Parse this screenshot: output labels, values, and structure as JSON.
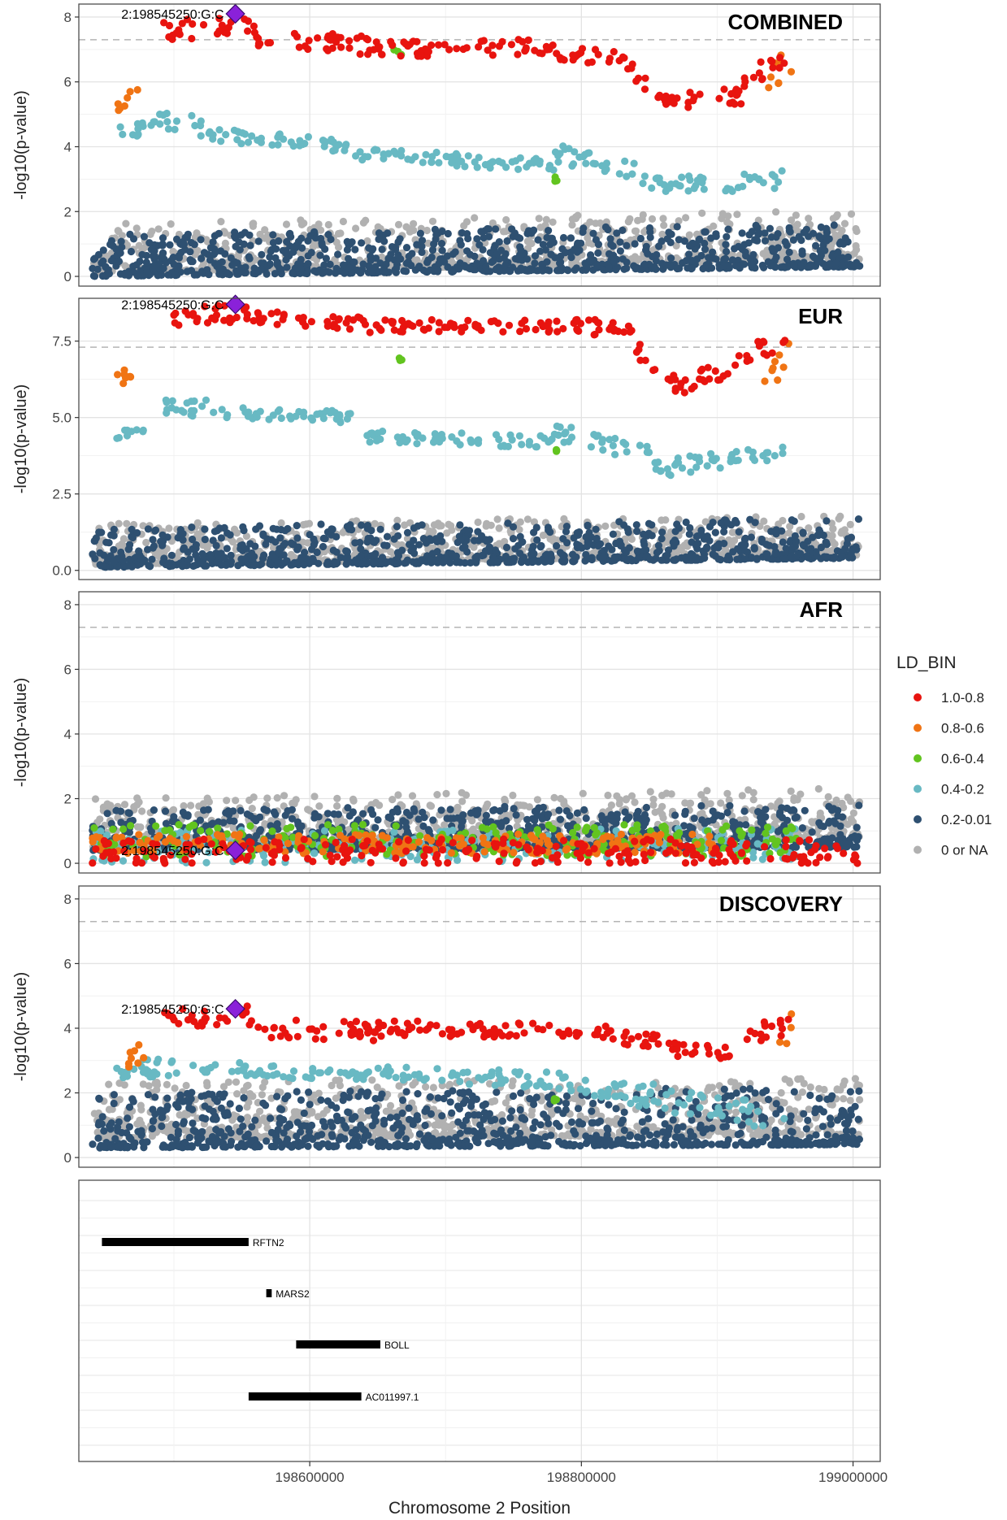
{
  "chart_data": {
    "type": "scatter",
    "xlabel": "Chromosome 2 Position",
    "ylabel": "-log10(p-value)",
    "xlim": [
      198430000,
      199020000
    ],
    "x_ticks": [
      "198600000",
      "198800000",
      "199000000"
    ],
    "x_tick_values": [
      198600000,
      198800000,
      199000000
    ],
    "grid": true,
    "significance_line": 7.3,
    "lead_snp": {
      "label": "2:198545250:G:C",
      "pos": 198545250
    },
    "legend": {
      "title": "LD_BIN",
      "placement": "right",
      "entries": [
        {
          "label": "1.0-0.8",
          "color": "#e8140f"
        },
        {
          "label": "0.8-0.6",
          "color": "#f07414"
        },
        {
          "label": "0.6-0.4",
          "color": "#62c41f"
        },
        {
          "label": "0.4-0.2",
          "color": "#68b9c3"
        },
        {
          "label": "0.2-0.01",
          "color": "#2e5071"
        },
        {
          "label": "0 or NA",
          "color": "#b1b1b1"
        }
      ]
    },
    "panels": [
      {
        "title": "COMBINED",
        "ylim": [
          -0.3,
          8.4
        ],
        "y_ticks": [
          "0",
          "2",
          "4",
          "6",
          "8"
        ],
        "y_tick_values": [
          0,
          2,
          4,
          6,
          8
        ],
        "lead_y": 8.1,
        "series": [
          {
            "bin": "1.0-0.8",
            "segments": [
              [
                198492000,
                7.6,
                198560000,
                7.7,
                0.3
              ],
              [
                198560000,
                7.4,
                198650000,
                7.1,
                0.3
              ],
              [
                198650000,
                7.0,
                198780000,
                7.1,
                0.25
              ],
              [
                198780000,
                6.9,
                198840000,
                6.6,
                0.25
              ],
              [
                198840000,
                6.2,
                198870000,
                5.3,
                0.3
              ],
              [
                198870000,
                5.4,
                198920000,
                5.6,
                0.3
              ],
              [
                198920000,
                6.0,
                198950000,
                6.8,
                0.3
              ]
            ]
          },
          {
            "bin": "0.8-0.6",
            "segments": [
              [
                198458000,
                5.1,
                198475000,
                6.1,
                0.3
              ],
              [
                198935000,
                6.0,
                198955000,
                6.7,
                0.5
              ]
            ]
          },
          {
            "bin": "0.6-0.4",
            "segments": [
              [
                198660000,
                6.9,
                198670000,
                6.9,
                0.1
              ],
              [
                198780000,
                3.0,
                198785000,
                3.0,
                0.1
              ]
            ]
          },
          {
            "bin": "0.4-0.2",
            "segments": [
              [
                198458000,
                4.4,
                198485000,
                4.6,
                0.2
              ],
              [
                198485000,
                4.9,
                198520000,
                4.6,
                0.3
              ],
              [
                198520000,
                4.4,
                198630000,
                4.0,
                0.2
              ],
              [
                198630000,
                3.8,
                198780000,
                3.4,
                0.2
              ],
              [
                198780000,
                3.8,
                198850000,
                3.1,
                0.3
              ],
              [
                198850000,
                2.8,
                198950000,
                3.0,
                0.3
              ]
            ]
          },
          {
            "bin": "0.2-0.01",
            "segments": [
              [
                198440000,
                0.0,
                199005000,
                0.3,
                0.6
              ]
            ]
          },
          {
            "bin": "0 or NA",
            "segments": [
              [
                198440000,
                0.1,
                199005000,
                0.5,
                0.7
              ]
            ]
          }
        ]
      },
      {
        "title": "EUR",
        "ylim": [
          -0.3,
          8.9
        ],
        "y_ticks": [
          "0.0",
          "2.5",
          "5.0",
          "7.5"
        ],
        "y_tick_values": [
          0,
          2.5,
          5,
          7.5
        ],
        "lead_y": 8.7,
        "series": [
          {
            "bin": "1.0-0.8",
            "segments": [
              [
                198492000,
                8.3,
                198560000,
                8.4,
                0.3
              ],
              [
                198560000,
                8.3,
                198650000,
                8.0,
                0.25
              ],
              [
                198650000,
                8.0,
                198800000,
                8.0,
                0.2
              ],
              [
                198800000,
                8.0,
                198840000,
                7.8,
                0.25
              ],
              [
                198840000,
                7.3,
                198870000,
                6.1,
                0.3
              ],
              [
                198870000,
                6.0,
                198925000,
                6.9,
                0.3
              ],
              [
                198930000,
                7.2,
                198955000,
                7.4,
                0.3
              ]
            ]
          },
          {
            "bin": "0.8-0.6",
            "segments": [
              [
                198458000,
                6.1,
                198478000,
                6.7,
                0.3
              ],
              [
                198935000,
                6.0,
                198955000,
                7.3,
                0.4
              ]
            ]
          },
          {
            "bin": "0.6-0.4",
            "segments": [
              [
                198665000,
                6.9,
                198668000,
                6.9,
                0.05
              ],
              [
                198780000,
                3.9,
                198783000,
                3.9,
                0.05
              ]
            ]
          },
          {
            "bin": "0.4-0.2",
            "segments": [
              [
                198458000,
                4.4,
                198480000,
                4.4,
                0.2
              ],
              [
                198485000,
                5.4,
                198530000,
                5.3,
                0.3
              ],
              [
                198530000,
                5.2,
                198630000,
                5.0,
                0.2
              ],
              [
                198640000,
                4.4,
                198780000,
                4.2,
                0.2
              ],
              [
                198780000,
                4.5,
                198850000,
                3.8,
                0.3
              ],
              [
                198850000,
                3.3,
                198950000,
                3.8,
                0.3
              ]
            ]
          },
          {
            "bin": "0.2-0.01",
            "segments": [
              [
                198440000,
                0.1,
                199005000,
                0.4,
                0.6
              ]
            ]
          },
          {
            "bin": "0 or NA",
            "segments": [
              [
                198440000,
                0.2,
                199005000,
                0.5,
                0.6
              ]
            ]
          }
        ]
      },
      {
        "title": "AFR",
        "ylim": [
          -0.3,
          8.4
        ],
        "y_ticks": [
          "0",
          "2",
          "4",
          "6",
          "8"
        ],
        "y_tick_values": [
          0,
          2,
          4,
          6,
          8
        ],
        "lead_y": 0.4,
        "series": [
          {
            "bin": "1.0-0.8",
            "segments": [
              [
                198440000,
                0.35,
                199005000,
                0.35,
                0.4
              ]
            ]
          },
          {
            "bin": "0.8-0.6",
            "segments": [
              [
                198440000,
                0.6,
                198900000,
                0.6,
                0.3
              ]
            ]
          },
          {
            "bin": "0.6-0.4",
            "segments": [
              [
                198440000,
                0.7,
                198960000,
                0.7,
                0.5
              ]
            ]
          },
          {
            "bin": "0.4-0.2",
            "segments": [
              [
                198440000,
                0.5,
                198960000,
                0.6,
                0.5
              ]
            ]
          },
          {
            "bin": "0.2-0.01",
            "segments": [
              [
                198440000,
                0.4,
                199005000,
                0.5,
                0.6
              ]
            ]
          },
          {
            "bin": "0 or NA",
            "segments": [
              [
                198440000,
                0.5,
                199005000,
                0.8,
                0.7
              ]
            ]
          }
        ]
      },
      {
        "title": "DISCOVERY",
        "ylim": [
          -0.3,
          8.4
        ],
        "y_ticks": [
          "0",
          "2",
          "4",
          "6",
          "8"
        ],
        "y_tick_values": [
          0,
          2,
          4,
          6,
          8
        ],
        "lead_y": 4.6,
        "series": [
          {
            "bin": "1.0-0.8",
            "segments": [
              [
                198492000,
                4.3,
                198560000,
                4.4,
                0.3
              ],
              [
                198560000,
                4.0,
                198650000,
                3.9,
                0.3
              ],
              [
                198650000,
                4.0,
                198800000,
                3.9,
                0.25
              ],
              [
                198800000,
                3.9,
                198860000,
                3.6,
                0.25
              ],
              [
                198860000,
                3.3,
                198910000,
                3.3,
                0.3
              ],
              [
                198920000,
                3.8,
                198955000,
                4.1,
                0.3
              ]
            ]
          },
          {
            "bin": "0.8-0.6",
            "segments": [
              [
                198458000,
                2.8,
                198478000,
                3.3,
                0.3
              ],
              [
                198945000,
                3.1,
                198955000,
                4.4,
                0.4
              ]
            ]
          },
          {
            "bin": "0.6-0.4",
            "segments": [
              [
                198778000,
                1.8,
                198782000,
                1.8,
                0.05
              ]
            ]
          },
          {
            "bin": "0.4-0.2",
            "segments": [
              [
                198458000,
                2.7,
                198520000,
                2.9,
                0.3
              ],
              [
                198520000,
                2.8,
                198650000,
                2.5,
                0.2
              ],
              [
                198650000,
                2.6,
                198780000,
                2.4,
                0.25
              ],
              [
                198780000,
                2.4,
                198950000,
                1.2,
                0.4
              ]
            ]
          },
          {
            "bin": "0.2-0.01",
            "segments": [
              [
                198440000,
                0.3,
                199005000,
                0.4,
                0.8
              ]
            ]
          },
          {
            "bin": "0 or NA",
            "segments": [
              [
                198440000,
                0.6,
                199005000,
                0.7,
                0.8
              ]
            ]
          }
        ]
      }
    ],
    "genes": [
      {
        "name": "RFTN2",
        "start": 198447000,
        "end": 198555000,
        "row": 1
      },
      {
        "name": "MARS2",
        "start": 198568000,
        "end": 198572000,
        "row": 2
      },
      {
        "name": "BOLL",
        "start": 198590000,
        "end": 198652000,
        "row": 3
      },
      {
        "name": "AC011997.1",
        "start": 198555000,
        "end": 198638000,
        "row": 4
      }
    ]
  }
}
